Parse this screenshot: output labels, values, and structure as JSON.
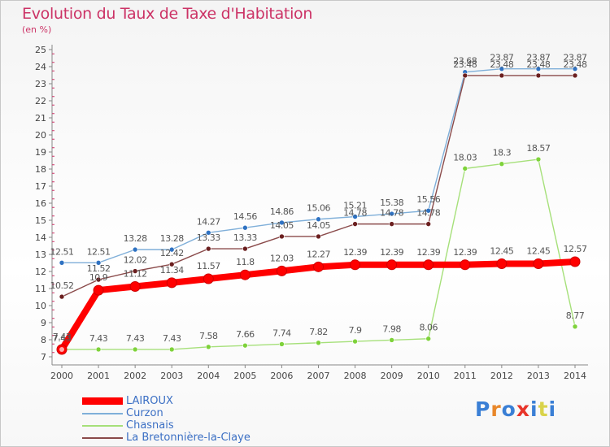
{
  "title": "Evolution du Taux de Taxe d'Habitation",
  "subtitle": "(en %)",
  "logo": {
    "text": "Proxiti",
    "letter_colors": [
      "#3a7fd5",
      "#e8872a",
      "#3a7fd5",
      "#e8352a",
      "#3a7fd5",
      "#d9d34a",
      "#3a7fd5"
    ]
  },
  "chart_data": {
    "type": "line",
    "x": [
      "2000",
      "2001",
      "2002",
      "2003",
      "2004",
      "2005",
      "2006",
      "2007",
      "2008",
      "2009",
      "2010",
      "2011",
      "2012",
      "2013",
      "2014"
    ],
    "ylim": [
      7,
      25
    ],
    "yticks": [
      "7",
      "8",
      "9",
      "10",
      "11",
      "12",
      "13",
      "14",
      "15",
      "16",
      "17",
      "18",
      "19",
      "20",
      "21",
      "22",
      "23",
      "24",
      "25"
    ],
    "grid": false,
    "legend_position": "bottom-left",
    "series": [
      {
        "name": "LAIROUX",
        "color": "#ff0000",
        "marker_color": "#ff0000",
        "emphasis": true,
        "values": [
          7.43,
          10.9,
          11.12,
          11.34,
          11.57,
          11.8,
          12.03,
          12.27,
          12.39,
          12.39,
          12.39,
          12.39,
          12.45,
          12.45,
          12.57
        ],
        "labels": [
          "7.43",
          "10.9",
          "11.12",
          "11.34",
          "11.57",
          "11.8",
          "12.03",
          "12.27",
          "12.39",
          "12.39",
          "12.39",
          "12.39",
          "12.45",
          "12.45",
          "12.57"
        ]
      },
      {
        "name": "Curzon",
        "color": "#7fafd9",
        "marker_color": "#2f72c2",
        "emphasis": false,
        "values": [
          12.51,
          12.51,
          13.28,
          13.28,
          14.27,
          14.56,
          14.86,
          15.06,
          15.21,
          15.38,
          15.56,
          23.68,
          23.87,
          23.87,
          23.87
        ],
        "labels": [
          "12.51",
          "12.51",
          "13.28",
          "13.28",
          "14.27",
          "14.56",
          "14.86",
          "15.06",
          "15.21",
          "15.38",
          "15.56",
          "23.68",
          "23.87",
          "23.87",
          "23.87"
        ]
      },
      {
        "name": "Chasnais",
        "color": "#a6e07a",
        "marker_color": "#7ed23a",
        "emphasis": false,
        "values": [
          7.43,
          7.43,
          7.43,
          7.43,
          7.58,
          7.66,
          7.74,
          7.82,
          7.9,
          7.98,
          8.06,
          18.03,
          18.3,
          18.57,
          8.77
        ],
        "labels": [
          "7.43",
          "7.43",
          "7.43",
          "7.43",
          "7.58",
          "7.66",
          "7.74",
          "7.82",
          "7.9",
          "7.98",
          "8.06",
          "18.03",
          "18.3",
          "18.57",
          "8.77"
        ]
      },
      {
        "name": "La Bretonnière-la-Claye",
        "color": "#8a4a4a",
        "marker_color": "#6b1f1f",
        "emphasis": false,
        "values": [
          10.52,
          11.52,
          12.02,
          12.42,
          13.33,
          13.33,
          14.05,
          14.05,
          14.78,
          14.78,
          14.78,
          23.48,
          23.48,
          23.48,
          23.48
        ],
        "labels": [
          "10.52",
          "11.52",
          "12.02",
          "12.42",
          "13.33",
          "13.33",
          "14.05",
          "14.05",
          "14.78",
          "14.78",
          "14.78",
          "23.48",
          "23.48",
          "23.48",
          "23.48"
        ]
      }
    ]
  }
}
